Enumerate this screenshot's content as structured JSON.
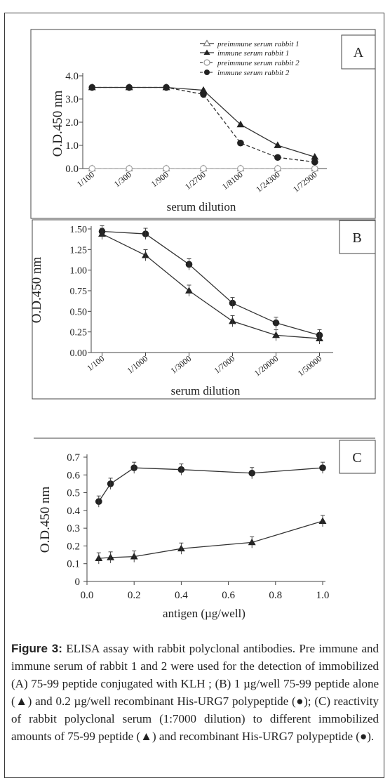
{
  "colors": {
    "line": "#333333",
    "dashed": "#444444",
    "open_marker": "#999999",
    "frame": "#3a3a3a"
  },
  "chart_data": [
    {
      "panel": "A",
      "type": "line",
      "categories": [
        "1/100",
        "1/300",
        "1/900",
        "1/2700",
        "1/8100",
        "1/24300",
        "1/72900"
      ],
      "yticks": [
        "0.0",
        "1.0",
        "2.0",
        "3.0",
        "4.0"
      ],
      "ylim": [
        0,
        4.0
      ],
      "xlabel": "serum dilution",
      "ylabel": "O.D.450 nm",
      "legend_position": "top-right",
      "series": [
        {
          "name": "preimmune serum rabbit 1",
          "marker": "open-triangle",
          "style": "solid",
          "values": [
            0.0,
            0.0,
            0.0,
            0.0,
            0.0,
            0.0,
            0.0
          ]
        },
        {
          "name": "immune serum rabbit 1",
          "marker": "filled-triangle",
          "style": "solid",
          "values": [
            3.5,
            3.5,
            3.5,
            3.38,
            1.9,
            1.0,
            0.5
          ]
        },
        {
          "name": "preimmune serum rabbit 2",
          "marker": "open-circle",
          "style": "dashed",
          "values": [
            0.0,
            0.0,
            0.0,
            0.0,
            0.0,
            0.0,
            0.0
          ]
        },
        {
          "name": "immune serum rabbit 2",
          "marker": "filled-circle",
          "style": "dashed",
          "values": [
            3.5,
            3.5,
            3.5,
            3.2,
            1.1,
            0.48,
            0.28
          ]
        }
      ]
    },
    {
      "panel": "B",
      "type": "line",
      "categories": [
        "1/100",
        "1/1000",
        "1/3000",
        "1/7000",
        "1/20000",
        "1/50000"
      ],
      "yticks": [
        "0.00",
        "0.25",
        "0.50",
        "0.75",
        "1.00",
        "1.25",
        "1.50"
      ],
      "ylim": [
        0,
        1.5
      ],
      "xlabel": "serum dilution",
      "ylabel": "O.D.450 nm",
      "series": [
        {
          "marker": "filled-triangle",
          "style": "solid",
          "values": [
            1.44,
            1.18,
            0.75,
            0.38,
            0.21,
            0.17
          ]
        },
        {
          "marker": "filled-circle",
          "style": "solid",
          "values": [
            1.47,
            1.44,
            1.07,
            0.6,
            0.36,
            0.21
          ]
        }
      ]
    },
    {
      "panel": "C",
      "type": "line",
      "x": [
        0.05,
        0.1,
        0.2,
        0.4,
        0.7,
        1.0
      ],
      "xticks": [
        "0.0",
        "0.2",
        "0.4",
        "0.6",
        "0.8",
        "1.0"
      ],
      "xlim": [
        0,
        1.0
      ],
      "yticks": [
        "0",
        "0.1",
        "0.2",
        "0.3",
        "0.4",
        "0.5",
        "0.6",
        "0.7"
      ],
      "ylim": [
        0,
        0.7
      ],
      "xlabel": "antigen (µg/well)",
      "ylabel": "O.D.450 nm",
      "series": [
        {
          "marker": "filled-circle",
          "style": "solid",
          "values": [
            0.45,
            0.55,
            0.64,
            0.63,
            0.61,
            0.64
          ]
        },
        {
          "marker": "filled-triangle",
          "style": "solid",
          "values": [
            0.13,
            0.135,
            0.14,
            0.185,
            0.22,
            0.34
          ]
        }
      ]
    }
  ],
  "caption": {
    "label": "Figure 3:",
    "text": "ELISA assay with rabbit polyclonal antibodies. Pre immune and immune serum of rabbit 1 and 2 were used for the detection of immobilized (A) 75-99 peptide conjugated with KLH ; (B) 1 µg/well 75-99 peptide alone (▲) and 0.2 µg/well recombinant His-URG7 polypeptide (●); (C) reactivity of rabbit polyclonal serum (1:7000 dilution) to different immobilized amounts of 75-99 peptide (▲) and recombinant His-URG7 polypeptide (●)."
  }
}
